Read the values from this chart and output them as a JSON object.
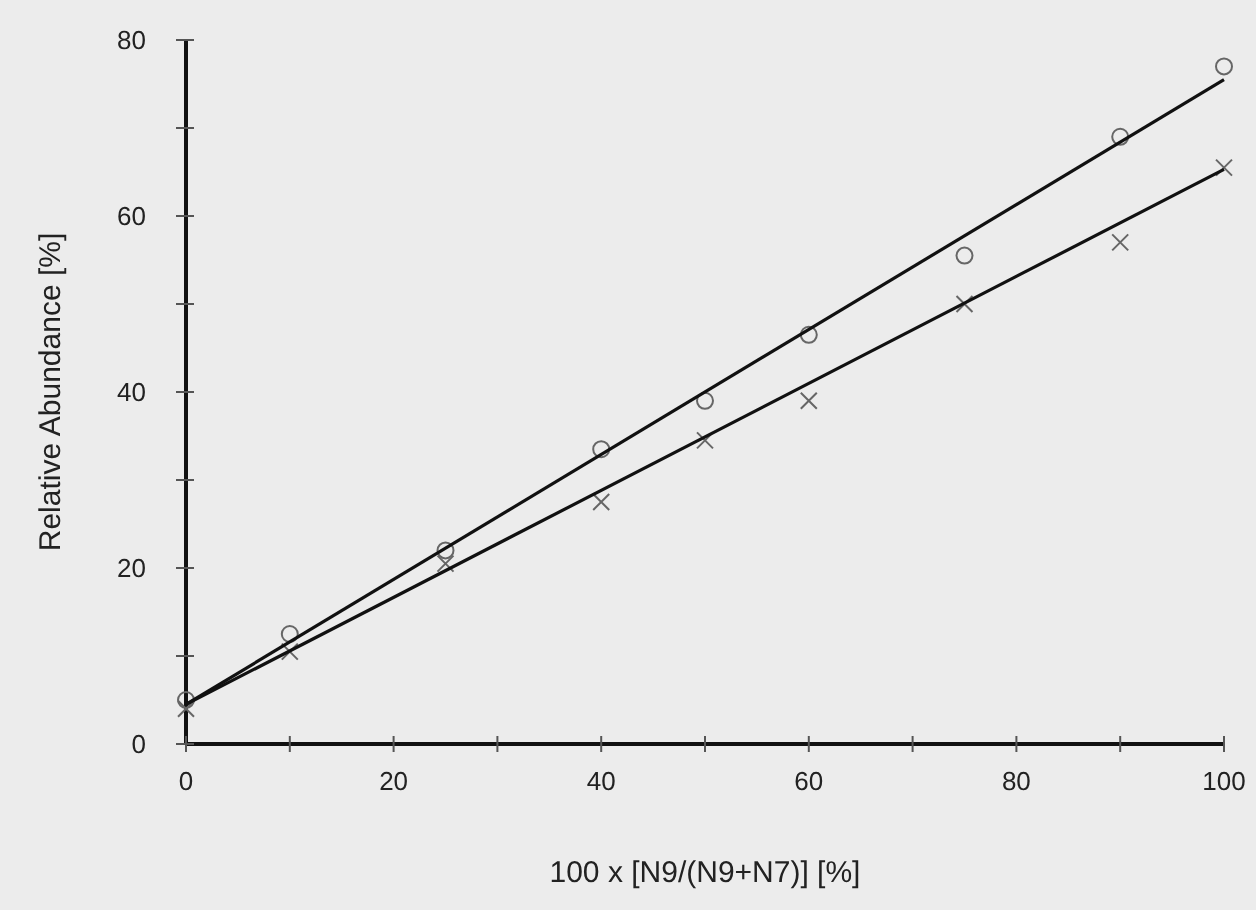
{
  "chart_data": {
    "type": "scatter",
    "xlabel": "100 x [N9/(N9+N7)] [%]",
    "ylabel": "Relative Abundance [%]",
    "xlim": [
      0,
      100
    ],
    "ylim": [
      0,
      80
    ],
    "xticks": [
      0,
      {
        "value": 10,
        "label": null
      },
      20,
      {
        "value": 30,
        "label": null
      },
      40,
      {
        "value": 50,
        "label": null
      },
      60,
      {
        "value": 70,
        "label": null
      },
      80,
      {
        "value": 90,
        "label": null
      },
      100
    ],
    "yticks": [
      0,
      {
        "value": 10,
        "label": null
      },
      20,
      {
        "value": 30,
        "label": null
      },
      40,
      {
        "value": 50,
        "label": null
      },
      60,
      {
        "value": 70,
        "label": null
      },
      80
    ],
    "grid": false,
    "series": [
      {
        "marker": "circle",
        "color": "#666666",
        "x": [
          0,
          10,
          25,
          40,
          50,
          60,
          75,
          90,
          100
        ],
        "values": [
          5,
          12.5,
          22,
          33.5,
          39,
          46.5,
          55.5,
          69,
          77
        ]
      },
      {
        "marker": "cross",
        "color": "#666666",
        "x": [
          0,
          10,
          25,
          40,
          50,
          60,
          75,
          90,
          100
        ],
        "values": [
          4,
          10.5,
          20.5,
          27.5,
          34.5,
          39,
          50,
          57,
          65.5
        ]
      },
      {
        "type": "line",
        "color": "#111111",
        "x": [
          0,
          100
        ],
        "values": [
          4.5,
          75.5
        ]
      },
      {
        "type": "line",
        "color": "#111111",
        "x": [
          0,
          100
        ],
        "values": [
          4.5,
          65.3
        ]
      }
    ]
  }
}
